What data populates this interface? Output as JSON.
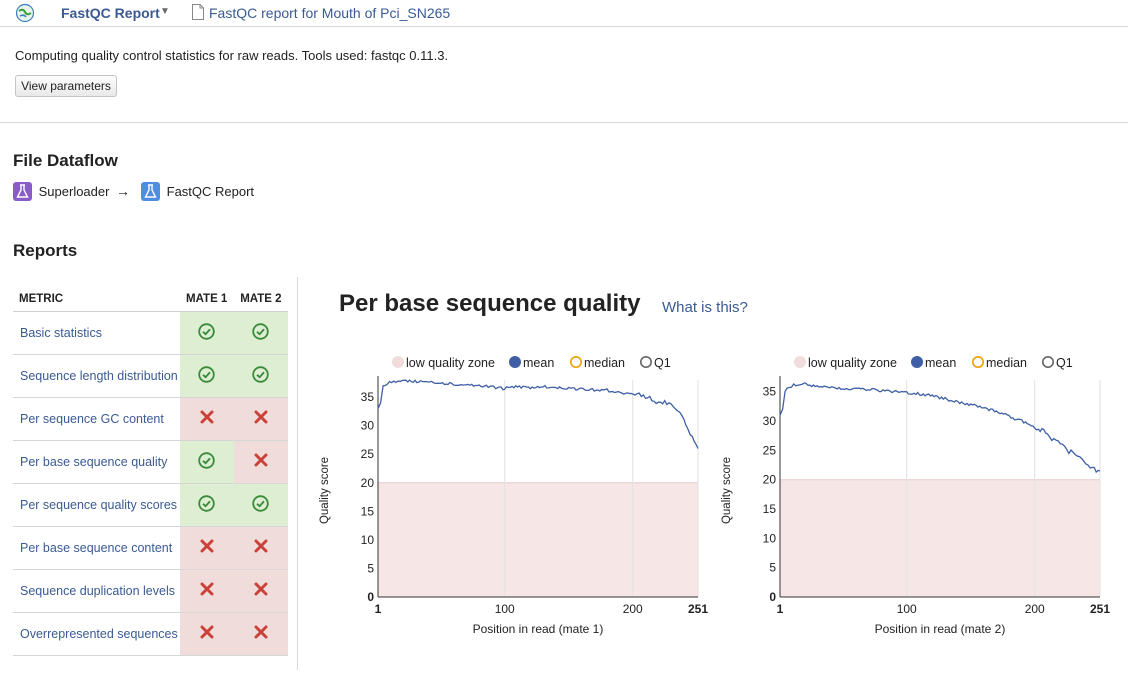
{
  "header": {
    "app_title": "FastQC Report",
    "doc_title": "FastQC report for Mouth of Pci_SN265"
  },
  "description": "Computing quality control statistics for raw reads. Tools used: fastqc 0.11.3.",
  "view_params_label": "View parameters",
  "dataflow": {
    "title": "File Dataflow",
    "arrow": "→",
    "from": "Superloader",
    "to": "FastQC Report",
    "from_color": "#8a5cc7",
    "to_color": "#4f8de0"
  },
  "reports": {
    "title": "Reports",
    "columns": [
      "METRIC",
      "MATE 1",
      "MATE 2"
    ],
    "rows": [
      {
        "name": "Basic statistics",
        "mate1": "pass",
        "mate2": "pass"
      },
      {
        "name": "Sequence length distribution",
        "mate1": "pass",
        "mate2": "pass"
      },
      {
        "name": "Per sequence GC content",
        "mate1": "fail",
        "mate2": "fail"
      },
      {
        "name": "Per base sequence quality",
        "mate1": "pass",
        "mate2": "fail"
      },
      {
        "name": "Per sequence quality scores",
        "mate1": "pass",
        "mate2": "pass"
      },
      {
        "name": "Per base sequence content",
        "mate1": "fail",
        "mate2": "fail"
      },
      {
        "name": "Sequence duplication levels",
        "mate1": "fail",
        "mate2": "fail"
      },
      {
        "name": "Overrepresented sequences",
        "mate1": "fail",
        "mate2": "fail"
      }
    ],
    "colors": {
      "pass": "#3a8a3a",
      "fail": "#c9423a"
    }
  },
  "section_title": "Per base sequence quality",
  "what_link": "What is this?",
  "chart_data": [
    {
      "type": "line",
      "legend": [
        "low quality zone",
        "mean",
        "median",
        "Q1"
      ],
      "legend_position": "top",
      "xlabel": "Position in read (mate 1)",
      "ylabel": "Quality score",
      "xlim": [
        1,
        251
      ],
      "ylim": [
        0,
        38
      ],
      "xticks": [
        1,
        100,
        200,
        251
      ],
      "yticks": [
        0,
        5,
        10,
        15,
        20,
        25,
        30,
        35
      ],
      "low_quality_zone": [
        0,
        20
      ],
      "series": [
        {
          "name": "mean",
          "color": "#3e5fa6",
          "x": [
            1,
            3,
            5,
            8,
            10,
            15,
            20,
            30,
            40,
            50,
            60,
            70,
            80,
            90,
            100,
            110,
            120,
            130,
            140,
            150,
            160,
            170,
            180,
            190,
            200,
            205,
            210,
            215,
            220,
            225,
            230,
            235,
            240,
            243,
            245,
            248,
            251
          ],
          "y": [
            33,
            34,
            37,
            37.3,
            37.5,
            37.6,
            37.8,
            37.7,
            37.6,
            37.5,
            37.3,
            37.2,
            37.0,
            36.8,
            36.5,
            36.9,
            36.6,
            36.8,
            36.7,
            36.5,
            36.4,
            36.3,
            36.2,
            35.8,
            35.5,
            35.6,
            35.0,
            34.6,
            34.0,
            34.4,
            33.5,
            32.5,
            31.0,
            29.8,
            28.5,
            27.2,
            26.0
          ]
        }
      ]
    },
    {
      "type": "line",
      "legend": [
        "low quality zone",
        "mean",
        "median",
        "Q1"
      ],
      "legend_position": "top",
      "xlabel": "Position in read (mate 2)",
      "ylabel": "Quality score",
      "xlim": [
        1,
        251
      ],
      "ylim": [
        0,
        37
      ],
      "xticks": [
        1,
        100,
        200,
        251
      ],
      "yticks": [
        0,
        5,
        10,
        15,
        20,
        25,
        30,
        35
      ],
      "low_quality_zone": [
        0,
        20
      ],
      "series": [
        {
          "name": "mean",
          "color": "#3e5fa6",
          "x": [
            1,
            3,
            5,
            8,
            10,
            15,
            20,
            30,
            40,
            50,
            60,
            70,
            80,
            90,
            100,
            110,
            120,
            130,
            140,
            150,
            160,
            170,
            180,
            190,
            200,
            210,
            215,
            220,
            225,
            230,
            235,
            240,
            245,
            248,
            251
          ],
          "y": [
            31,
            32,
            35,
            35.8,
            36,
            36.2,
            36.3,
            36.0,
            35.8,
            35.6,
            35.5,
            35.4,
            35.2,
            35.0,
            34.8,
            34.6,
            34.3,
            33.8,
            33.3,
            32.8,
            32.3,
            31.6,
            30.8,
            30.0,
            29.0,
            27.8,
            26.8,
            26.2,
            25.2,
            24.3,
            23.8,
            22.8,
            22.0,
            21.3,
            21.5
          ]
        }
      ]
    }
  ]
}
